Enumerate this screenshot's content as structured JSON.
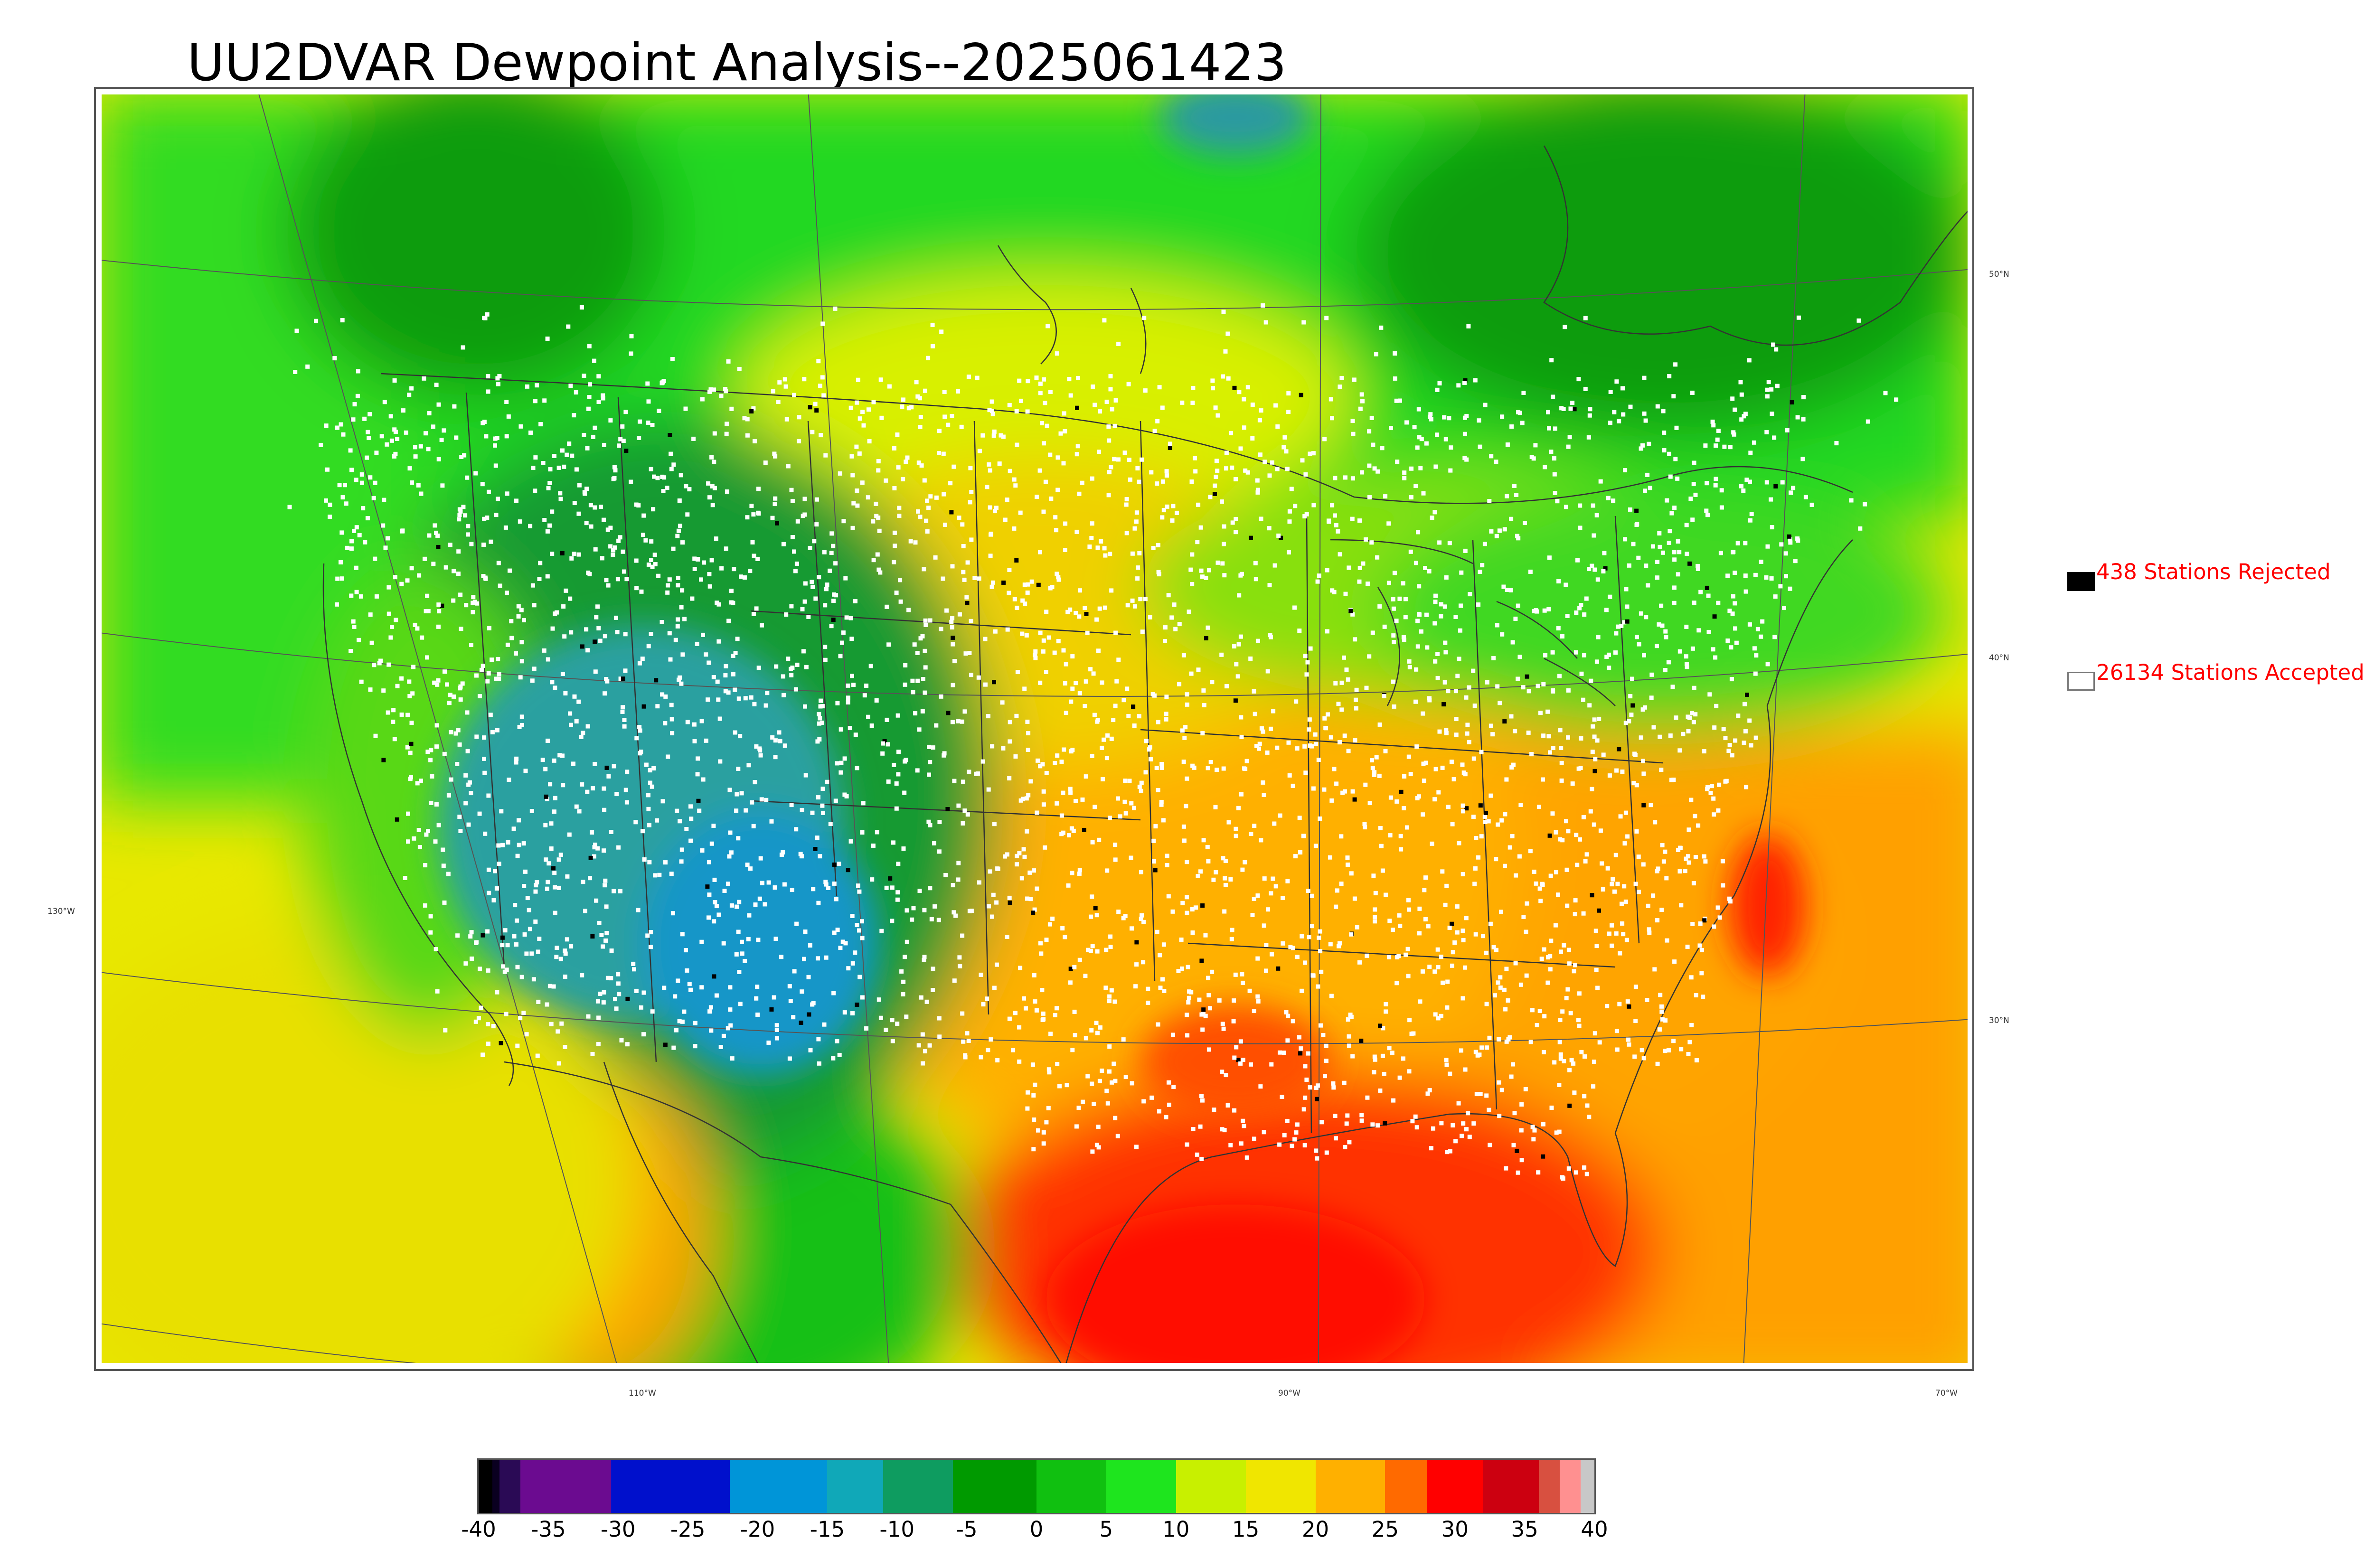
{
  "title": "UU2DVAR Dewpoint Analysis--2025061423",
  "legend": {
    "rejected_label": "438 Stations Rejected",
    "accepted_label": "26134 Stations Accepted",
    "rejected_color": "#000000",
    "accepted_color": "#ffffff",
    "label_color": "#ff0000"
  },
  "axes": {
    "lat_labels": [
      "50°N",
      "40°N",
      "30°N"
    ],
    "lon_labels": [
      "130°W",
      "110°W",
      "90°W",
      "70°W"
    ]
  },
  "colorbar": {
    "ticks": [
      "-40",
      "-35",
      "-30",
      "-25",
      "-20",
      "-15",
      "-10",
      "-5",
      "0",
      "5",
      "10",
      "15",
      "20",
      "25",
      "30",
      "35",
      "40"
    ],
    "segments": [
      {
        "from": -40,
        "to": -39,
        "color": "#000000"
      },
      {
        "from": -39,
        "to": -38.5,
        "color": "#0a0020"
      },
      {
        "from": -38.5,
        "to": -37,
        "color": "#2a0a55"
      },
      {
        "from": -37,
        "to": -30.5,
        "color": "#6b0b90"
      },
      {
        "from": -30.5,
        "to": -22,
        "color": "#0010cc"
      },
      {
        "from": -22,
        "to": -15,
        "color": "#0095d8"
      },
      {
        "from": -15,
        "to": -11,
        "color": "#10a8b8"
      },
      {
        "from": -11,
        "to": -6,
        "color": "#0e9c60"
      },
      {
        "from": -6,
        "to": 0,
        "color": "#009a00"
      },
      {
        "from": 0,
        "to": 5,
        "color": "#10c010"
      },
      {
        "from": 5,
        "to": 10,
        "color": "#1ee51e"
      },
      {
        "from": 10,
        "to": 15,
        "color": "#c8f000"
      },
      {
        "from": 15,
        "to": 20,
        "color": "#f0e600"
      },
      {
        "from": 20,
        "to": 25,
        "color": "#ffb000"
      },
      {
        "from": 25,
        "to": 28,
        "color": "#ff6a00"
      },
      {
        "from": 28,
        "to": 32,
        "color": "#ff0000"
      },
      {
        "from": 32,
        "to": 36,
        "color": "#cc0010"
      },
      {
        "from": 36,
        "to": 37.5,
        "color": "#d85040"
      },
      {
        "from": 37.5,
        "to": 39,
        "color": "#ff9090"
      },
      {
        "from": 39,
        "to": 40,
        "color": "#c8c8c8"
      }
    ]
  },
  "map": {
    "region_colors": {
      "ocean_west": "#e8e800",
      "ocean_east": "#ffa000",
      "gulf": "#ff3000",
      "canada": "#20d820",
      "canada_dark": "#109c10",
      "interior_west": "#149a30",
      "interior_dry": "#2aa0a0",
      "plains": "#f0d000",
      "east": "#ffa400"
    },
    "station_colors": [
      "#ffffff",
      "#000000"
    ]
  }
}
